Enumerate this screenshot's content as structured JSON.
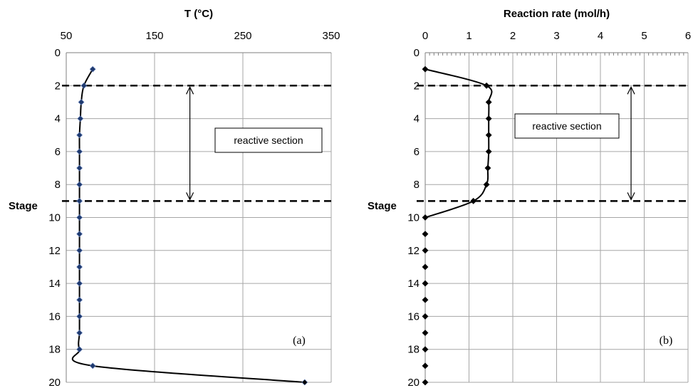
{
  "chart_data": [
    {
      "type": "line",
      "panel_label": "(a)",
      "xlabel": "T (°C)",
      "ylabel": "Stage",
      "x_axis_position": "top",
      "y_axis_inverted": true,
      "xlim": [
        50,
        350
      ],
      "ylim": [
        0,
        20
      ],
      "xticks": [
        "50",
        "150",
        "250",
        "350"
      ],
      "yticks": [
        "0",
        "2",
        "4",
        "6",
        "8",
        "10",
        "12",
        "14",
        "16",
        "18",
        "20"
      ],
      "grid": true,
      "series": [
        {
          "marker": "diamond",
          "marker_color": "#1f3a6e",
          "points": [
            {
              "stage": 1,
              "x": 80
            },
            {
              "stage": 2,
              "x": 70
            },
            {
              "stage": 3,
              "x": 67
            },
            {
              "stage": 4,
              "x": 66
            },
            {
              "stage": 5,
              "x": 65
            },
            {
              "stage": 6,
              "x": 65
            },
            {
              "stage": 7,
              "x": 65
            },
            {
              "stage": 8,
              "x": 65
            },
            {
              "stage": 9,
              "x": 65
            },
            {
              "stage": 10,
              "x": 65
            },
            {
              "stage": 11,
              "x": 65
            },
            {
              "stage": 12,
              "x": 65
            },
            {
              "stage": 13,
              "x": 65
            },
            {
              "stage": 14,
              "x": 65
            },
            {
              "stage": 15,
              "x": 65
            },
            {
              "stage": 16,
              "x": 65
            },
            {
              "stage": 17,
              "x": 65
            },
            {
              "stage": 18,
              "x": 65
            },
            {
              "stage": 19,
              "x": 80
            },
            {
              "stage": 20,
              "x": 320
            }
          ]
        }
      ],
      "reactive_section": {
        "from_stage": 2,
        "to_stage": 9,
        "label": "reactive section",
        "arrow_x": 190
      }
    },
    {
      "type": "line",
      "panel_label": "(b)",
      "xlabel": "Reaction rate (mol/h)",
      "ylabel": "Stage",
      "x_axis_position": "top",
      "y_axis_inverted": true,
      "xlim": [
        0,
        6
      ],
      "ylim": [
        0,
        20
      ],
      "xticks": [
        "0",
        "1",
        "2",
        "3",
        "4",
        "5",
        "6"
      ],
      "yticks": [
        "0",
        "2",
        "4",
        "6",
        "8",
        "10",
        "12",
        "14",
        "16",
        "18",
        "20"
      ],
      "grid": true,
      "series": [
        {
          "marker": "diamond",
          "marker_color": "#000000",
          "points": [
            {
              "stage": 1,
              "x": 0
            },
            {
              "stage": 2,
              "x": 1.4
            },
            {
              "stage": 3,
              "x": 1.45
            },
            {
              "stage": 4,
              "x": 1.45
            },
            {
              "stage": 5,
              "x": 1.45
            },
            {
              "stage": 6,
              "x": 1.45
            },
            {
              "stage": 7,
              "x": 1.43
            },
            {
              "stage": 8,
              "x": 1.4
            },
            {
              "stage": 9,
              "x": 1.1
            },
            {
              "stage": 10,
              "x": 0
            },
            {
              "stage": 11,
              "x": 0
            },
            {
              "stage": 12,
              "x": 0
            },
            {
              "stage": 13,
              "x": 0
            },
            {
              "stage": 14,
              "x": 0
            },
            {
              "stage": 15,
              "x": 0
            },
            {
              "stage": 16,
              "x": 0
            },
            {
              "stage": 17,
              "x": 0
            },
            {
              "stage": 18,
              "x": 0
            },
            {
              "stage": 19,
              "x": 0
            },
            {
              "stage": 20,
              "x": 0
            }
          ]
        }
      ],
      "reactive_section": {
        "from_stage": 2,
        "to_stage": 9,
        "label": "reactive section",
        "arrow_x": 4.7
      }
    }
  ]
}
